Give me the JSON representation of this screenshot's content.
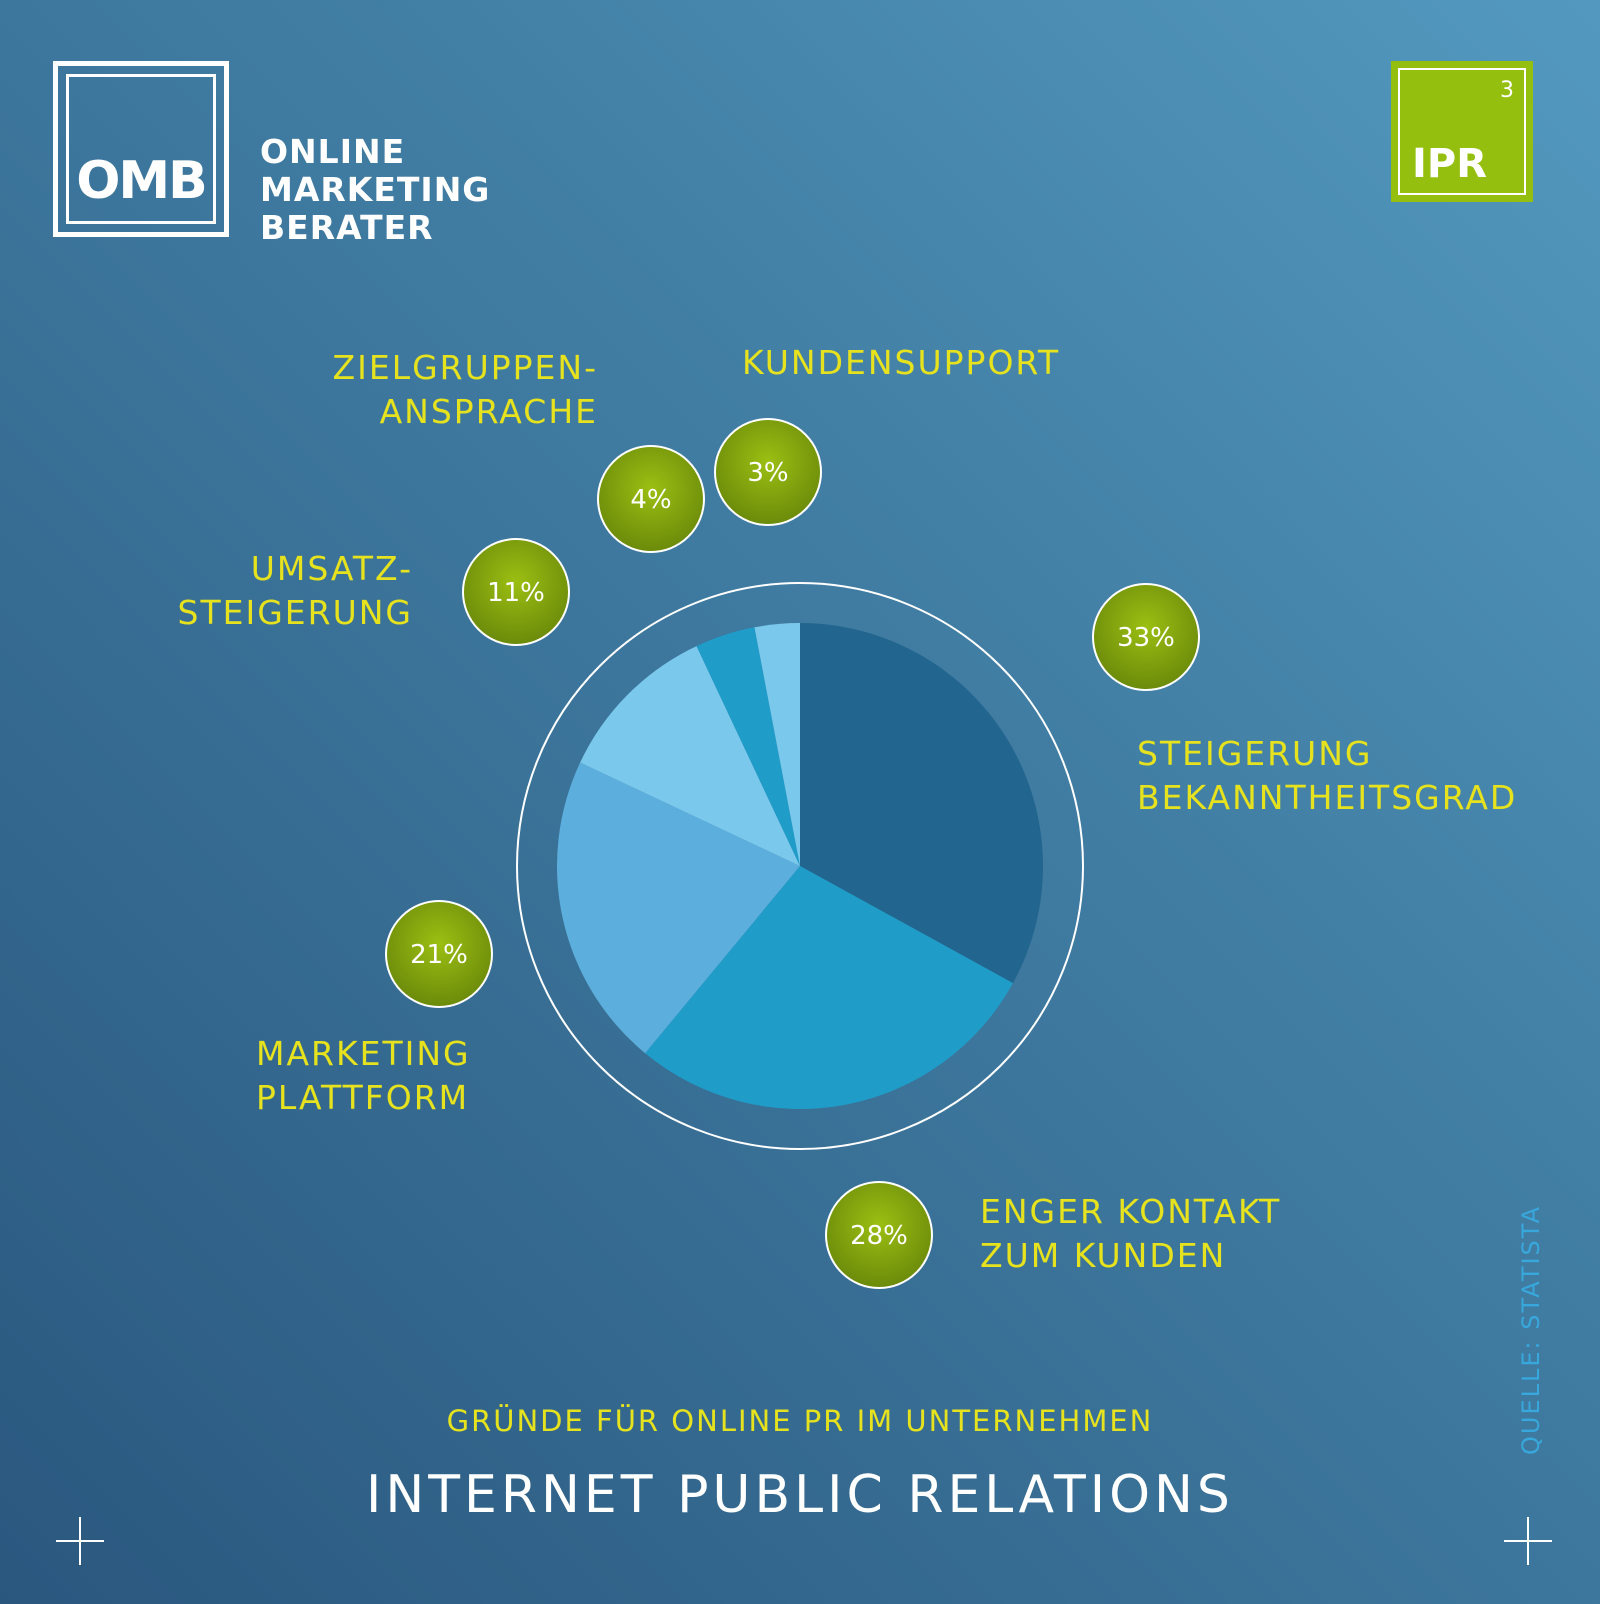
{
  "brand": {
    "logo_text": "OMB",
    "lines": [
      "ONLINE",
      "MARKETING",
      "BERATER"
    ]
  },
  "badge": {
    "label": "IPR",
    "number": "3"
  },
  "chart_data": {
    "type": "pie",
    "title": "INTERNET PUBLIC RELATIONS",
    "subtitle": "GRÜNDE FÜR ONLINE PR IM UNTERNEHMEN",
    "slices": [
      {
        "label": "STEIGERUNG BEKANNTHEITSGRAD",
        "value": 33,
        "display": "33%",
        "color": "#22668f"
      },
      {
        "label": "ENGER KONTAKT ZUM KUNDEN",
        "value": 28,
        "display": "28%",
        "color": "#1f9dc8"
      },
      {
        "label": "MARKETING PLATTFORM",
        "value": 21,
        "display": "21%",
        "color": "#5caedd"
      },
      {
        "label": "UMSATZ-STEIGERUNG",
        "value": 11,
        "display": "11%",
        "color": "#7bc8ed"
      },
      {
        "label": "ZIELGRUPPEN-ANSPRACHE",
        "value": 4,
        "display": "4%",
        "color": "#1f9dc8"
      },
      {
        "label": "KUNDENSUPPORT",
        "value": 3,
        "display": "3%",
        "color": "#7bc8ed"
      }
    ],
    "ring_color": "#ffffff",
    "bubble_color": "#8aaa12"
  },
  "labels": {
    "bekanntheit": [
      "STEIGERUNG",
      "BEKANNTHEITSGRAD"
    ],
    "kontakt": [
      "ENGER KONTAKT",
      "ZUM KUNDEN"
    ],
    "marketing": [
      "MARKETING",
      "PLATTFORM"
    ],
    "umsatz": [
      "UMSATZ-",
      "STEIGERUNG"
    ],
    "zielgruppen": [
      "ZIELGRUPPEN-",
      "ANSPRACHE"
    ],
    "kundensupport": [
      "KUNDENSUPPORT"
    ]
  },
  "source": "QUELLE: STATISTA"
}
